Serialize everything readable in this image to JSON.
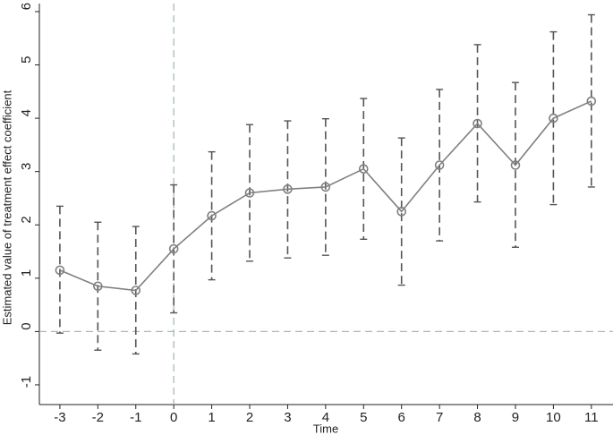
{
  "chart_data": {
    "type": "errorbar-line",
    "x": [
      -3,
      -2,
      -1,
      0,
      1,
      2,
      3,
      4,
      5,
      6,
      7,
      8,
      9,
      10,
      11
    ],
    "series": [
      {
        "color": "#808080",
        "values": [
          1.15,
          0.85,
          0.77,
          1.55,
          2.17,
          2.6,
          2.67,
          2.71,
          3.05,
          2.25,
          3.12,
          3.9,
          3.12,
          4.0,
          4.32
        ],
        "lower": [
          -0.03,
          -0.35,
          -0.42,
          0.35,
          0.97,
          1.32,
          1.38,
          1.43,
          1.73,
          0.87,
          1.7,
          2.43,
          1.58,
          2.38,
          2.71
        ],
        "upper": [
          2.35,
          2.05,
          1.97,
          2.75,
          3.37,
          3.88,
          3.95,
          3.99,
          4.37,
          3.63,
          4.54,
          5.38,
          4.67,
          5.62,
          5.94
        ]
      }
    ],
    "error_color": "#555555",
    "reference_color": "#a9b9b9",
    "hline": 0,
    "vline": 0,
    "xlabel": "Time",
    "ylabel": "Estimated value of treatment effect coefficient",
    "xlim": [
      -3.54,
      11.57
    ],
    "ylim": [
      -1.37,
      6.15
    ],
    "xticks": [
      -3,
      -2,
      -1,
      0,
      1,
      2,
      3,
      4,
      5,
      6,
      7,
      8,
      9,
      10,
      11
    ],
    "yticks": [
      -1,
      0,
      1,
      2,
      3,
      4,
      5,
      6
    ]
  }
}
